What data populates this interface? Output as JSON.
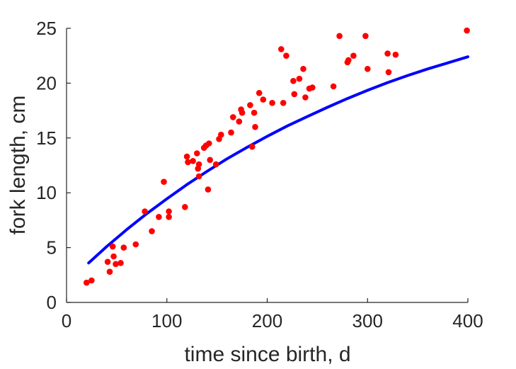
{
  "chart_data": {
    "type": "scatter",
    "xlabel": "time since birth, d",
    "ylabel": "fork length, cm",
    "xlim": [
      0,
      400
    ],
    "ylim": [
      0,
      25
    ],
    "xticks": [
      0,
      100,
      200,
      300,
      400
    ],
    "yticks": [
      0,
      5,
      10,
      15,
      20,
      25
    ],
    "grid": false,
    "legend": "none",
    "series": [
      {
        "type": "scatter",
        "color": "#ff0000",
        "points": [
          [
            20,
            1.8
          ],
          [
            25,
            2.0
          ],
          [
            41,
            3.7
          ],
          [
            43,
            2.8
          ],
          [
            46,
            5.1
          ],
          [
            47,
            4.2
          ],
          [
            49,
            3.5
          ],
          [
            54,
            3.6
          ],
          [
            57,
            5.0
          ],
          [
            69,
            5.3
          ],
          [
            78,
            8.3
          ],
          [
            85,
            6.5
          ],
          [
            92,
            7.8
          ],
          [
            97,
            11.0
          ],
          [
            102,
            7.8
          ],
          [
            102,
            8.3
          ],
          [
            118,
            8.7
          ],
          [
            120,
            13.3
          ],
          [
            121,
            12.8
          ],
          [
            126,
            12.9
          ],
          [
            130,
            13.6
          ],
          [
            131,
            12.2
          ],
          [
            132,
            12.6
          ],
          [
            132,
            11.5
          ],
          [
            137,
            14.1
          ],
          [
            139,
            14.3
          ],
          [
            141,
            10.3
          ],
          [
            142,
            14.5
          ],
          [
            143,
            13.0
          ],
          [
            149,
            12.6
          ],
          [
            152,
            14.9
          ],
          [
            154,
            15.3
          ],
          [
            164,
            15.5
          ],
          [
            166,
            16.9
          ],
          [
            172,
            16.5
          ],
          [
            174,
            17.6
          ],
          [
            175,
            17.3
          ],
          [
            183,
            18.0
          ],
          [
            185,
            14.2
          ],
          [
            187,
            17.3
          ],
          [
            188,
            16.0
          ],
          [
            192,
            19.1
          ],
          [
            196,
            18.5
          ],
          [
            205,
            18.2
          ],
          [
            214,
            23.1
          ],
          [
            216,
            18.2
          ],
          [
            219,
            22.5
          ],
          [
            226,
            20.2
          ],
          [
            227,
            19.0
          ],
          [
            232,
            20.4
          ],
          [
            236,
            21.3
          ],
          [
            238,
            18.7
          ],
          [
            242,
            19.5
          ],
          [
            245,
            19.6
          ],
          [
            266,
            19.7
          ],
          [
            272,
            24.3
          ],
          [
            280,
            21.9
          ],
          [
            281,
            22.1
          ],
          [
            286,
            22.5
          ],
          [
            298,
            24.3
          ],
          [
            300,
            21.3
          ],
          [
            320,
            22.7
          ],
          [
            321,
            21.0
          ],
          [
            328,
            22.6
          ],
          [
            399,
            24.8
          ]
        ]
      },
      {
        "type": "line",
        "color": "#0000ff",
        "points": [
          [
            22,
            3.6
          ],
          [
            40,
            5.1
          ],
          [
            60,
            6.65
          ],
          [
            80,
            8.1
          ],
          [
            100,
            9.45
          ],
          [
            120,
            10.75
          ],
          [
            140,
            11.95
          ],
          [
            160,
            13.1
          ],
          [
            180,
            14.15
          ],
          [
            200,
            15.15
          ],
          [
            220,
            16.1
          ],
          [
            240,
            16.95
          ],
          [
            260,
            17.8
          ],
          [
            280,
            18.6
          ],
          [
            300,
            19.35
          ],
          [
            320,
            20.05
          ],
          [
            340,
            20.7
          ],
          [
            360,
            21.3
          ],
          [
            380,
            21.85
          ],
          [
            400,
            22.4
          ]
        ]
      }
    ]
  }
}
